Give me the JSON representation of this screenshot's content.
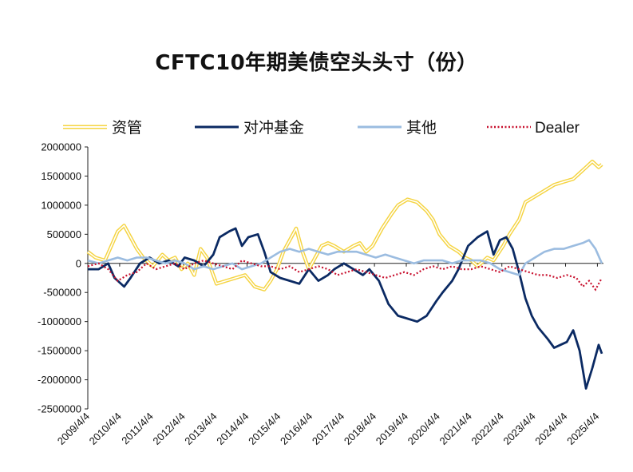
{
  "chart_data": {
    "type": "line",
    "title": "CFTC10年期美债空头头寸（份）",
    "xlabel": "",
    "ylabel": "",
    "ylim": [
      -2500000,
      2000000
    ],
    "y_ticks": [
      "2000000",
      "1500000",
      "1000000",
      "500000",
      "0",
      "-500000",
      "-1000000",
      "-1500000",
      "-2000000",
      "-2500000"
    ],
    "y_tick_values": [
      2000000,
      1500000,
      1000000,
      500000,
      0,
      -500000,
      -1000000,
      -1500000,
      -2000000,
      -2500000
    ],
    "x_ticks": [
      "2009/4/4",
      "2010/4/4",
      "2011/4/4",
      "2012/4/4",
      "2013/4/4",
      "2014/4/4",
      "2015/4/4",
      "2016/4/4",
      "2017/4/4",
      "2018/4/4",
      "2019/4/4",
      "2020/4/4",
      "2021/4/4",
      "2022/4/4",
      "2023/4/4",
      "2024/4/4",
      "2025/4/4"
    ],
    "x_tick_years": [
      2009.26,
      2010.26,
      2011.26,
      2012.26,
      2013.26,
      2014.26,
      2015.26,
      2016.26,
      2017.26,
      2018.26,
      2019.26,
      2020.26,
      2021.26,
      2022.26,
      2023.26,
      2024.26,
      2025.26
    ],
    "xlim": [
      2009.26,
      2025.45
    ],
    "legend_position": "top",
    "series": [
      {
        "name": "资管",
        "color": "#f5d442",
        "style": "double",
        "x": [
          2009.26,
          2009.5,
          2009.8,
          2010.0,
          2010.2,
          2010.4,
          2010.6,
          2010.8,
          2011.0,
          2011.3,
          2011.6,
          2011.8,
          2012.0,
          2012.2,
          2012.4,
          2012.6,
          2012.8,
          2013.0,
          2013.3,
          2013.6,
          2013.9,
          2014.2,
          2014.5,
          2014.8,
          2015.0,
          2015.2,
          2015.4,
          2015.6,
          2015.8,
          2016.0,
          2016.2,
          2016.4,
          2016.6,
          2016.8,
          2017.0,
          2017.3,
          2017.6,
          2017.8,
          2018.0,
          2018.2,
          2018.5,
          2018.8,
          2019.0,
          2019.3,
          2019.6,
          2019.9,
          2020.1,
          2020.3,
          2020.6,
          2020.9,
          2021.1,
          2021.3,
          2021.5,
          2021.8,
          2022.0,
          2022.3,
          2022.5,
          2022.8,
          2023.0,
          2023.3,
          2023.6,
          2023.9,
          2024.2,
          2024.5,
          2024.7,
          2024.9,
          2025.1,
          2025.3,
          2025.4
        ],
        "values": [
          200000,
          100000,
          50000,
          300000,
          550000,
          650000,
          450000,
          250000,
          100000,
          -50000,
          150000,
          50000,
          100000,
          -100000,
          0,
          -200000,
          250000,
          100000,
          -350000,
          -300000,
          -250000,
          -200000,
          -400000,
          -450000,
          -300000,
          -100000,
          200000,
          400000,
          600000,
          200000,
          -100000,
          100000,
          300000,
          350000,
          300000,
          200000,
          300000,
          350000,
          200000,
          300000,
          600000,
          850000,
          1000000,
          1100000,
          1050000,
          900000,
          750000,
          500000,
          300000,
          200000,
          100000,
          50000,
          -50000,
          100000,
          50000,
          300000,
          500000,
          750000,
          1050000,
          1150000,
          1250000,
          1350000,
          1400000,
          1450000,
          1550000,
          1650000,
          1750000,
          1650000,
          1700000
        ]
      },
      {
        "name": "对冲基金",
        "color": "#0b2a63",
        "style": "solid",
        "x": [
          2009.26,
          2009.6,
          2009.9,
          2010.1,
          2010.4,
          2010.6,
          2010.9,
          2011.2,
          2011.5,
          2011.8,
          2012.1,
          2012.3,
          2012.6,
          2012.9,
          2013.2,
          2013.4,
          2013.7,
          2013.9,
          2014.1,
          2014.3,
          2014.6,
          2014.8,
          2015.0,
          2015.3,
          2015.6,
          2015.9,
          2016.2,
          2016.5,
          2016.8,
          2017.0,
          2017.3,
          2017.6,
          2017.9,
          2018.1,
          2018.4,
          2018.7,
          2019.0,
          2019.3,
          2019.6,
          2019.9,
          2020.2,
          2020.4,
          2020.7,
          2020.9,
          2021.2,
          2021.5,
          2021.8,
          2022.0,
          2022.2,
          2022.4,
          2022.6,
          2022.8,
          2023.0,
          2023.2,
          2023.4,
          2023.7,
          2023.9,
          2024.1,
          2024.3,
          2024.5,
          2024.7,
          2024.9,
          2025.1,
          2025.3,
          2025.4
        ],
        "values": [
          -100000,
          -100000,
          0,
          -250000,
          -400000,
          -250000,
          0,
          100000,
          0,
          50000,
          -50000,
          100000,
          50000,
          -50000,
          150000,
          450000,
          550000,
          600000,
          300000,
          450000,
          500000,
          200000,
          -150000,
          -250000,
          -300000,
          -350000,
          -100000,
          -300000,
          -200000,
          -100000,
          0,
          -100000,
          -200000,
          -100000,
          -300000,
          -700000,
          -900000,
          -950000,
          -1000000,
          -900000,
          -650000,
          -500000,
          -300000,
          -100000,
          300000,
          450000,
          550000,
          150000,
          400000,
          450000,
          250000,
          -150000,
          -600000,
          -900000,
          -1100000,
          -1300000,
          -1450000,
          -1400000,
          -1350000,
          -1150000,
          -1500000,
          -2150000,
          -1800000,
          -1400000,
          -1550000
        ]
      },
      {
        "name": "其他",
        "color": "#9bbce0",
        "style": "solid",
        "x": [
          2009.26,
          2009.6,
          2009.9,
          2010.2,
          2010.5,
          2010.8,
          2011.1,
          2011.4,
          2011.7,
          2012.0,
          2012.3,
          2012.6,
          2012.9,
          2013.2,
          2013.5,
          2013.8,
          2014.1,
          2014.4,
          2014.7,
          2015.0,
          2015.3,
          2015.6,
          2015.9,
          2016.2,
          2016.5,
          2016.8,
          2017.1,
          2017.4,
          2017.7,
          2018.0,
          2018.3,
          2018.6,
          2018.9,
          2019.2,
          2019.5,
          2019.8,
          2020.1,
          2020.4,
          2020.7,
          2021.0,
          2021.3,
          2021.6,
          2021.9,
          2022.2,
          2022.5,
          2022.8,
          2023.0,
          2023.3,
          2023.6,
          2023.9,
          2024.2,
          2024.5,
          2024.8,
          2025.0,
          2025.2,
          2025.4
        ],
        "values": [
          50000,
          0,
          50000,
          100000,
          50000,
          100000,
          100000,
          50000,
          0,
          50000,
          0,
          -100000,
          -50000,
          -100000,
          -50000,
          0,
          -100000,
          -50000,
          0,
          100000,
          200000,
          250000,
          200000,
          250000,
          200000,
          150000,
          200000,
          200000,
          200000,
          150000,
          100000,
          150000,
          100000,
          50000,
          0,
          50000,
          50000,
          50000,
          0,
          50000,
          50000,
          50000,
          0,
          -100000,
          -150000,
          -200000,
          0,
          100000,
          200000,
          250000,
          250000,
          300000,
          350000,
          400000,
          250000,
          0
        ]
      },
      {
        "name": "Dealer",
        "color": "#c8102e",
        "style": "dotted",
        "x": [
          2009.26,
          2009.6,
          2009.9,
          2010.2,
          2010.5,
          2010.8,
          2011.1,
          2011.4,
          2011.7,
          2012.0,
          2012.3,
          2012.6,
          2012.9,
          2013.2,
          2013.5,
          2013.8,
          2014.1,
          2014.4,
          2014.7,
          2015.0,
          2015.3,
          2015.6,
          2015.9,
          2016.2,
          2016.5,
          2016.8,
          2017.1,
          2017.4,
          2017.7,
          2018.0,
          2018.3,
          2018.6,
          2018.9,
          2019.2,
          2019.5,
          2019.8,
          2020.1,
          2020.4,
          2020.7,
          2021.0,
          2021.3,
          2021.6,
          2021.9,
          2022.2,
          2022.5,
          2022.8,
          2023.1,
          2023.4,
          2023.7,
          2024.0,
          2024.3,
          2024.6,
          2024.8,
          2025.0,
          2025.2,
          2025.4
        ],
        "values": [
          -50000,
          0,
          -100000,
          -300000,
          -200000,
          -150000,
          0,
          -100000,
          -50000,
          0,
          -100000,
          0,
          50000,
          0,
          -50000,
          -100000,
          50000,
          0,
          -50000,
          -50000,
          -100000,
          -50000,
          -150000,
          -100000,
          -50000,
          -100000,
          -200000,
          -150000,
          -100000,
          -150000,
          -200000,
          -250000,
          -200000,
          -150000,
          -200000,
          -100000,
          -50000,
          -100000,
          -50000,
          -100000,
          -100000,
          -50000,
          -100000,
          -150000,
          -50000,
          -100000,
          -150000,
          -200000,
          -200000,
          -250000,
          -200000,
          -250000,
          -400000,
          -300000,
          -450000,
          -250000
        ]
      }
    ]
  }
}
